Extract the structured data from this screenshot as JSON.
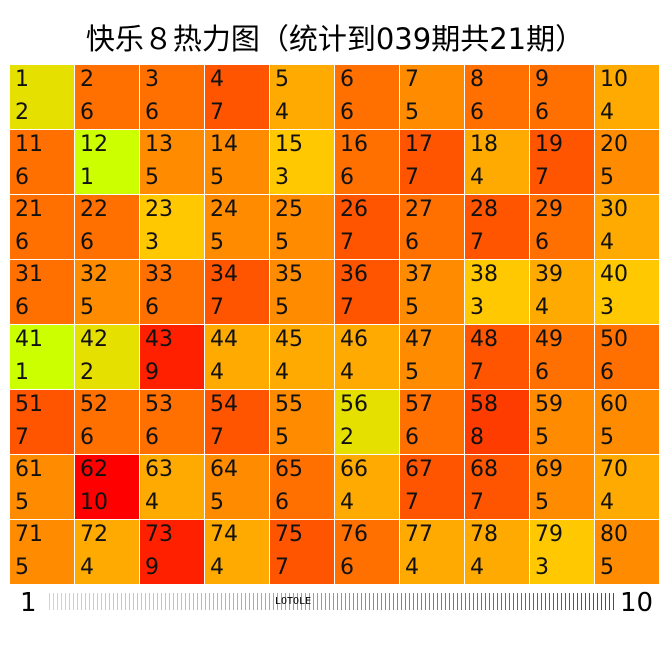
{
  "chart_data": {
    "type": "heatmap",
    "title": "快乐８热力图（统计到039期共21期）",
    "numbers": [
      1,
      2,
      3,
      4,
      5,
      6,
      7,
      8,
      9,
      10,
      11,
      12,
      13,
      14,
      15,
      16,
      17,
      18,
      19,
      20,
      21,
      22,
      23,
      24,
      25,
      26,
      27,
      28,
      29,
      30,
      31,
      32,
      33,
      34,
      35,
      36,
      37,
      38,
      39,
      40,
      41,
      42,
      43,
      44,
      45,
      46,
      47,
      48,
      49,
      50,
      51,
      52,
      53,
      54,
      55,
      56,
      57,
      58,
      59,
      60,
      61,
      62,
      63,
      64,
      65,
      66,
      67,
      68,
      69,
      70,
      71,
      72,
      73,
      74,
      75,
      76,
      77,
      78,
      79,
      80
    ],
    "counts": [
      2,
      6,
      6,
      7,
      4,
      6,
      5,
      6,
      6,
      4,
      6,
      1,
      5,
      5,
      3,
      6,
      7,
      4,
      7,
      5,
      6,
      6,
      3,
      5,
      5,
      7,
      6,
      7,
      6,
      4,
      6,
      5,
      6,
      7,
      5,
      7,
      5,
      3,
      4,
      3,
      1,
      2,
      9,
      4,
      4,
      4,
      5,
      7,
      6,
      6,
      7,
      6,
      6,
      7,
      5,
      2,
      6,
      8,
      5,
      5,
      5,
      10,
      4,
      5,
      6,
      4,
      7,
      7,
      5,
      4,
      5,
      4,
      9,
      4,
      7,
      6,
      4,
      4,
      3,
      5
    ],
    "columns": 10,
    "color_scale": {
      "min": 1,
      "max": 10,
      "colors": [
        "#ccff00",
        "#e6e000",
        "#ffc800",
        "#ffaa00",
        "#ff8c00",
        "#ff7000",
        "#ff5500",
        "#ff3c00",
        "#ff2000",
        "#ff0000"
      ]
    },
    "legend": {
      "min_label": "1",
      "max_label": "10",
      "placement": "bottom"
    }
  },
  "watermark": "LOTOLE"
}
